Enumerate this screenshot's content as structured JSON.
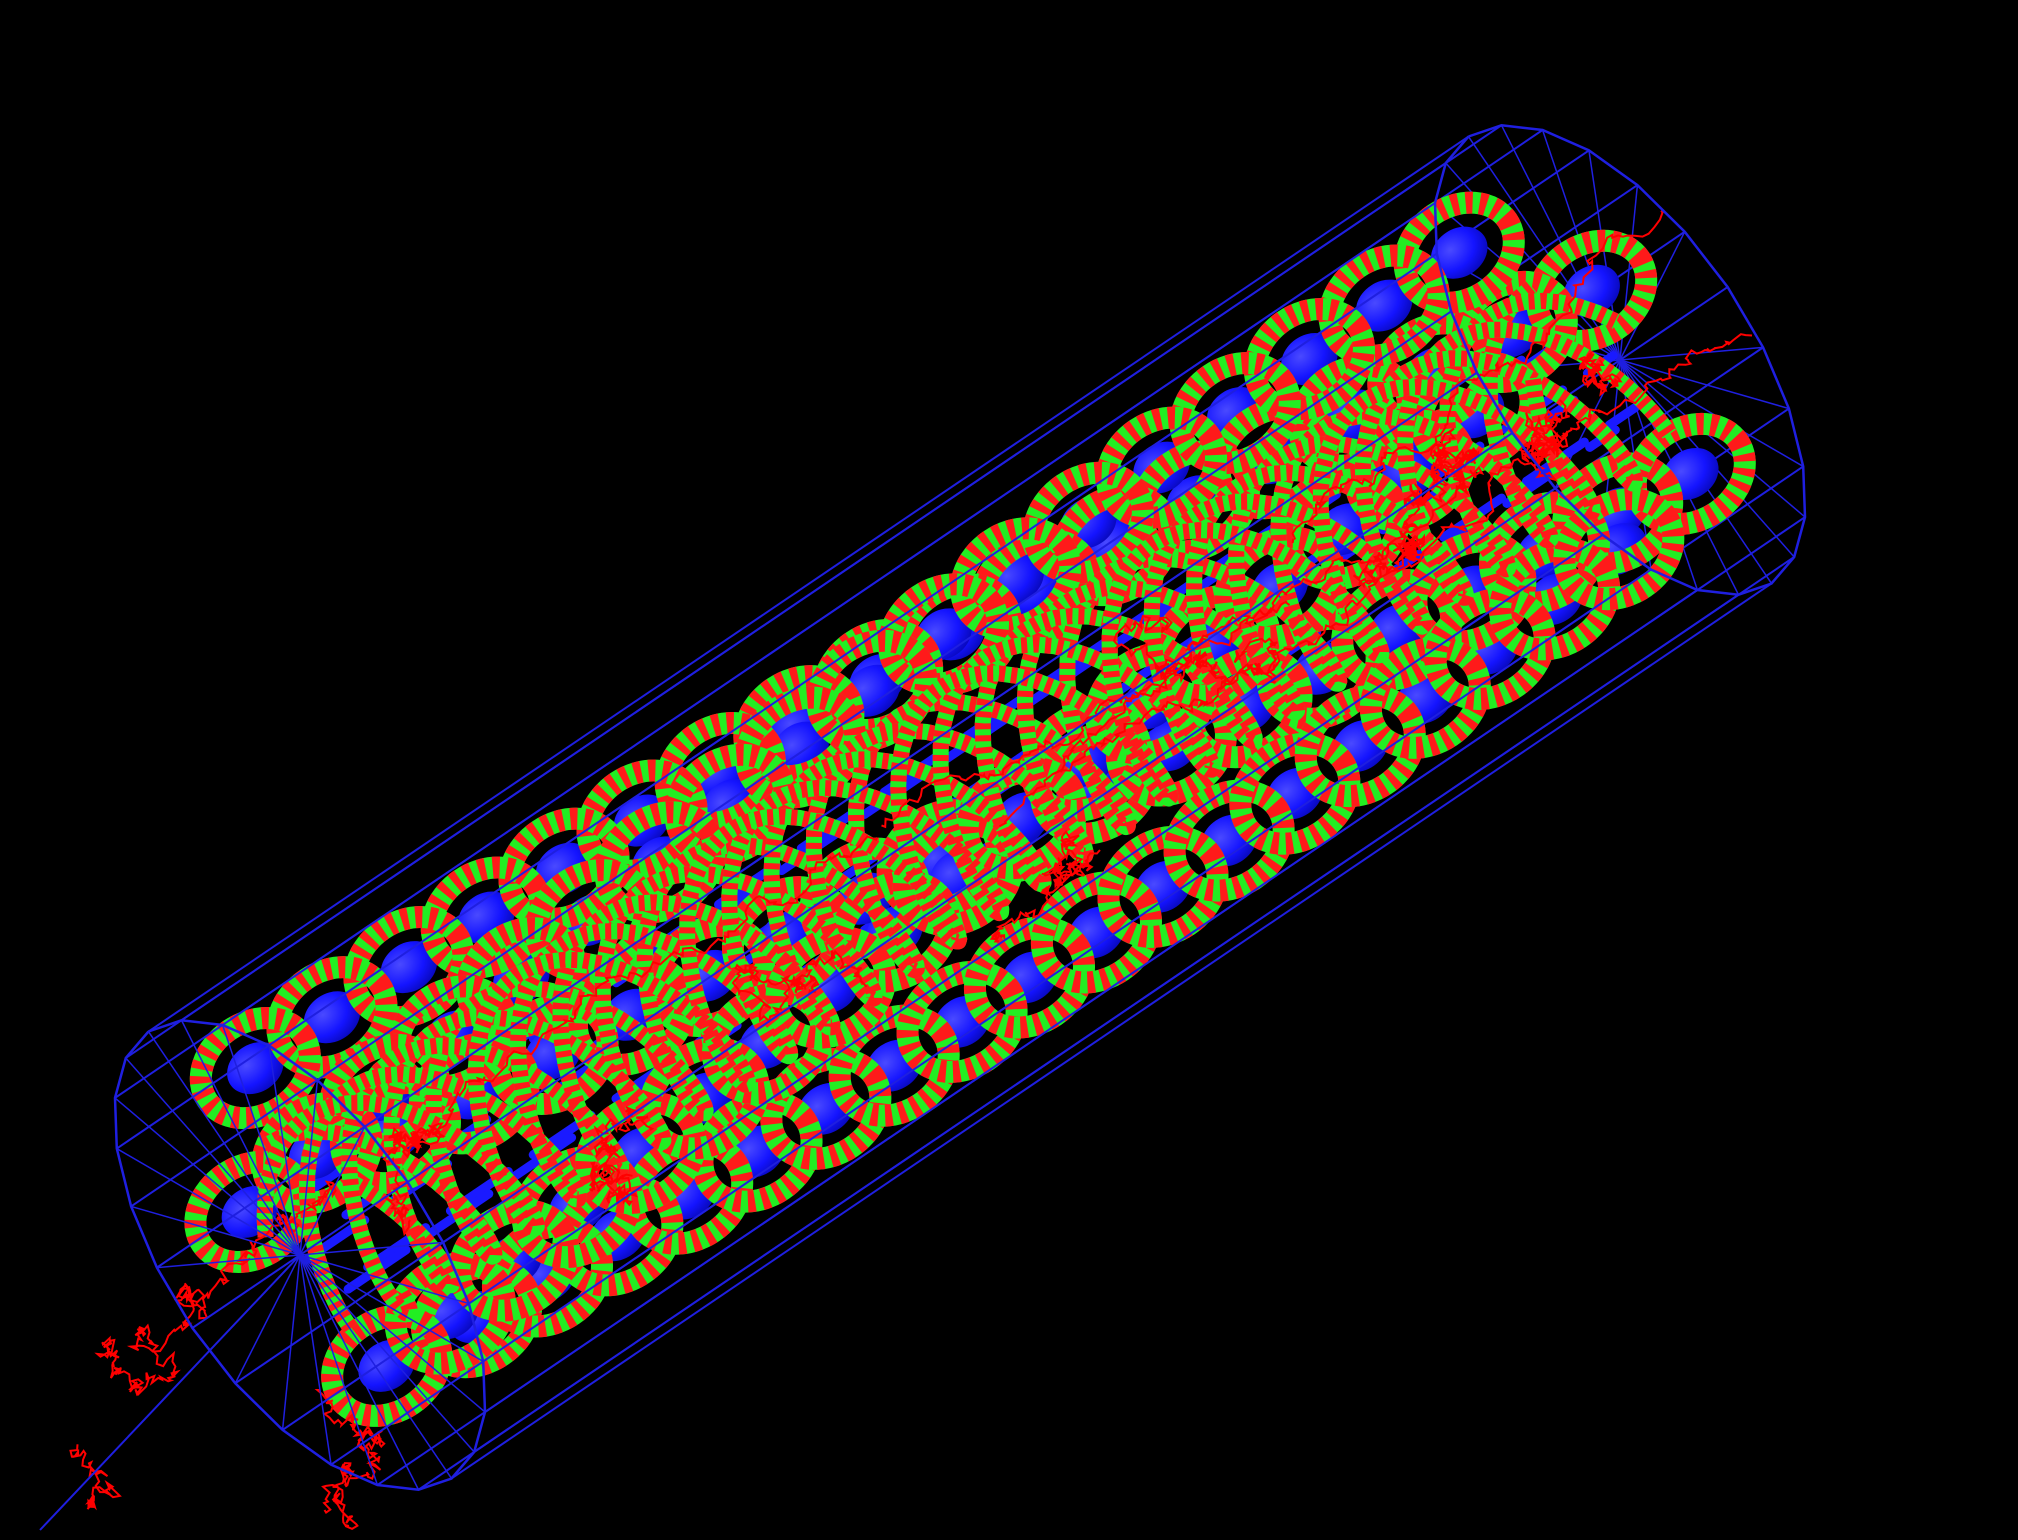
{
  "scene": {
    "background": "#000000",
    "wireframe_color": "#1f1fe0",
    "disc_color": "#1414ff",
    "fiber_colors": [
      "#ff1a1a",
      "#22ee22"
    ],
    "track_color": "#ff0000",
    "cylinder_segments": 24,
    "helix_fibers": 5,
    "coils_per_fiber": 18,
    "inner_rods": 6
  }
}
